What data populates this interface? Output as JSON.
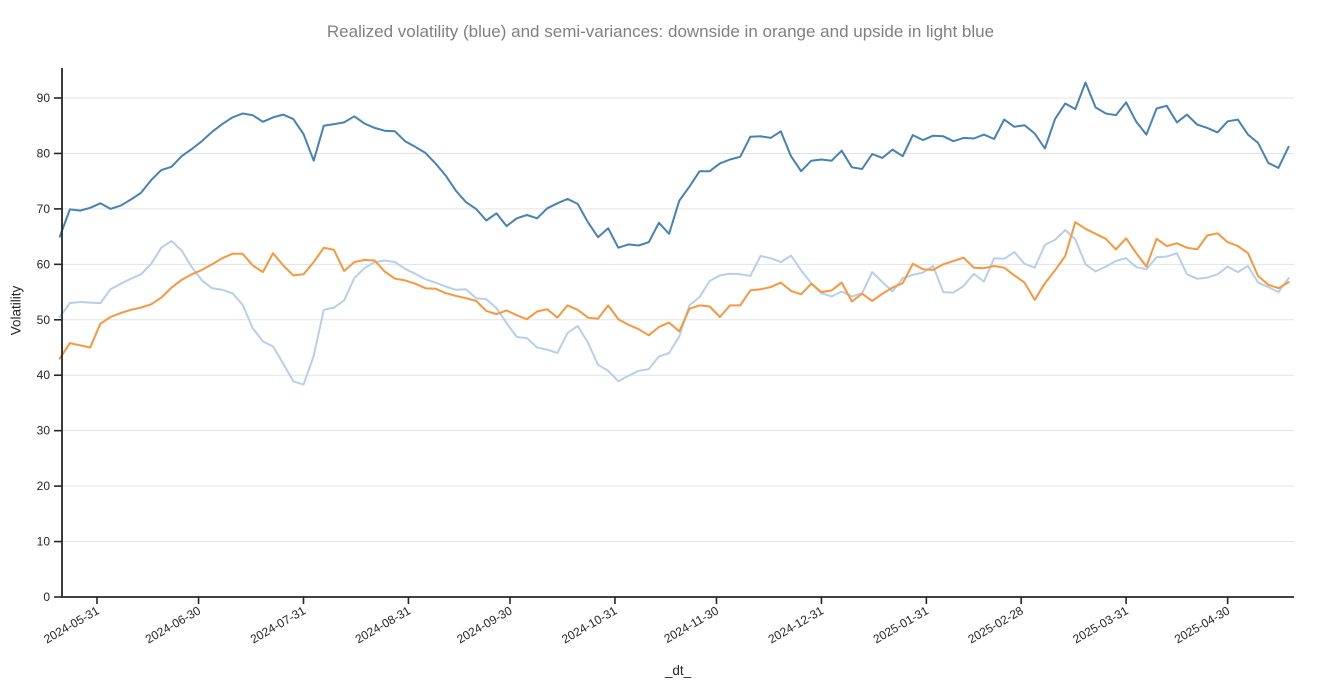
{
  "title": {
    "text": "Realized volatility (blue) and semi-variances: downside in orange and upside in light blue",
    "color": "#808080"
  },
  "chart_data": {
    "type": "line",
    "title": "Realized volatility (blue) and semi-variances: downside in orange and upside in light blue",
    "xlabel": "_dt_",
    "ylabel": "Volatility",
    "ylim": [
      0,
      95.4
    ],
    "y_ticks": [
      0,
      10,
      20,
      30,
      40,
      50,
      60,
      70,
      80,
      90
    ],
    "grid": "horizontal-only",
    "legend_position": "none",
    "x_start_date": "2024-05-20",
    "x_step_days": 3,
    "x_total_days": 367,
    "x_ticks": [
      {
        "label": "2024-05-31",
        "day": 11
      },
      {
        "label": "2024-06-30",
        "day": 41
      },
      {
        "label": "2024-07-31",
        "day": 72
      },
      {
        "label": "2024-08-31",
        "day": 103
      },
      {
        "label": "2024-09-30",
        "day": 133
      },
      {
        "label": "2024-10-31",
        "day": 164
      },
      {
        "label": "2024-11-30",
        "day": 194
      },
      {
        "label": "2024-12-31",
        "day": 225
      },
      {
        "label": "2025-01-31",
        "day": 256
      },
      {
        "label": "2025-02-28",
        "day": 284
      },
      {
        "label": "2025-03-31",
        "day": 315
      },
      {
        "label": "2025-04-30",
        "day": 345
      }
    ],
    "colors": {
      "realized_volatility": "#4682b4",
      "downside_semivariance": "#f8973d",
      "upside_semivariance": "#b7cfe9",
      "gridline": "#e3e3e3",
      "axis": "#262626"
    },
    "series": [
      {
        "name": "realized_volatility",
        "label": "Realized volatility (blue)",
        "color": "#4682b4",
        "values": [
          65.0,
          69.9,
          69.7,
          70.2,
          71.0,
          70.0,
          70.6,
          71.7,
          72.9,
          75.2,
          77.0,
          77.6,
          79.5,
          80.8,
          82.2,
          83.9,
          85.3,
          86.5,
          87.2,
          86.9,
          85.7,
          86.5,
          87.0,
          86.2,
          83.5,
          78.7,
          85.0,
          85.3,
          85.6,
          86.7,
          85.4,
          84.6,
          84.1,
          84.0,
          82.2,
          81.2,
          80.1,
          78.2,
          76.0,
          73.3,
          71.2,
          70.0,
          67.9,
          69.2,
          66.9,
          68.3,
          68.9,
          68.3,
          70.1,
          71.0,
          71.8,
          70.9,
          67.6,
          64.9,
          66.5,
          63.0,
          63.6,
          63.4,
          64.0,
          67.5,
          65.5,
          71.5,
          74.0,
          76.8,
          76.8,
          78.2,
          78.9,
          79.4,
          83.0,
          83.1,
          82.8,
          84.0,
          79.5,
          76.8,
          78.7,
          78.9,
          78.7,
          80.5,
          77.5,
          77.2,
          79.9,
          79.2,
          80.7,
          79.5,
          83.3,
          82.4,
          83.2,
          83.1,
          82.2,
          82.8,
          82.7,
          83.4,
          82.6,
          86.1,
          84.8,
          85.1,
          83.6,
          80.9,
          86.2,
          89.0,
          88.0,
          92.8,
          88.3,
          87.2,
          86.9,
          89.2,
          85.7,
          83.4,
          88.1,
          88.6,
          85.6,
          87.0,
          85.2,
          84.6,
          83.8,
          85.8,
          86.1,
          83.4,
          81.9,
          78.3,
          77.4,
          81.2
        ]
      },
      {
        "name": "upside_semivariance",
        "label": "Upside semi-variance (light blue)",
        "color": "#b7cfe9",
        "values": [
          50.5,
          53.0,
          53.2,
          53.1,
          53.0,
          55.5,
          56.5,
          57.4,
          58.2,
          60.1,
          63.0,
          64.2,
          62.5,
          59.5,
          57.1,
          55.7,
          55.4,
          54.8,
          52.7,
          48.5,
          46.1,
          45.2,
          42.1,
          38.9,
          38.3,
          43.5,
          51.8,
          52.2,
          53.5,
          57.5,
          59.3,
          60.4,
          60.7,
          60.4,
          59.2,
          58.3,
          57.3,
          56.7,
          56.0,
          55.4,
          55.5,
          53.9,
          53.7,
          52.1,
          49.4,
          46.9,
          46.7,
          45.0,
          44.6,
          44.0,
          47.6,
          48.9,
          45.9,
          41.9,
          40.8,
          38.9,
          39.9,
          40.8,
          41.1,
          43.4,
          44.0,
          47.0,
          52.6,
          54.1,
          57.0,
          58.0,
          58.3,
          58.2,
          57.9,
          61.5,
          61.1,
          60.4,
          61.6,
          58.9,
          56.6,
          54.8,
          54.2,
          55.1,
          54.2,
          54.8,
          58.6,
          56.8,
          55.1,
          57.5,
          58.1,
          58.5,
          59.7,
          55.0,
          54.9,
          56.1,
          58.3,
          56.9,
          61.1,
          61.0,
          62.2,
          60.1,
          59.4,
          63.5,
          64.4,
          66.2,
          64.5,
          60.0,
          58.7,
          59.6,
          60.6,
          61.1,
          59.5,
          59.1,
          61.3,
          61.4,
          62.0,
          58.2,
          57.4,
          57.6,
          58.2,
          59.6,
          58.6,
          59.7,
          56.7,
          55.9,
          55.0,
          57.5
        ]
      },
      {
        "name": "downside_semivariance",
        "label": "Downside semi-variance (orange)",
        "color": "#f8973d",
        "values": [
          43.0,
          45.8,
          45.4,
          45.0,
          49.3,
          50.5,
          51.2,
          51.8,
          52.2,
          52.8,
          54.0,
          55.8,
          57.2,
          58.2,
          59.0,
          60.0,
          61.1,
          61.9,
          61.9,
          59.8,
          58.6,
          62.0,
          59.8,
          58.0,
          58.2,
          60.4,
          63.0,
          62.6,
          58.8,
          60.4,
          60.8,
          60.7,
          58.7,
          57.4,
          57.1,
          56.5,
          55.7,
          55.6,
          54.8,
          54.3,
          53.9,
          53.4,
          51.6,
          51.0,
          51.7,
          50.8,
          50.1,
          51.5,
          51.9,
          50.4,
          52.6,
          51.8,
          50.4,
          50.2,
          52.6,
          50.1,
          49.1,
          48.3,
          47.2,
          48.7,
          49.5,
          47.9,
          52.0,
          52.6,
          52.4,
          50.5,
          52.6,
          52.6,
          55.3,
          55.5,
          55.9,
          56.7,
          55.2,
          54.6,
          56.5,
          55.0,
          55.3,
          56.7,
          53.3,
          54.7,
          53.4,
          54.7,
          55.8,
          56.6,
          60.1,
          59.1,
          59.0,
          60.0,
          60.6,
          61.2,
          59.4,
          59.3,
          59.7,
          59.4,
          58.0,
          56.7,
          53.6,
          56.6,
          58.9,
          61.5,
          67.6,
          66.4,
          65.5,
          64.6,
          62.7,
          64.7,
          62.0,
          59.6,
          64.6,
          63.3,
          63.8,
          63.0,
          62.7,
          65.2,
          65.6,
          64.0,
          63.3,
          62.0,
          57.9,
          56.3,
          55.7,
          56.8
        ]
      }
    ]
  }
}
